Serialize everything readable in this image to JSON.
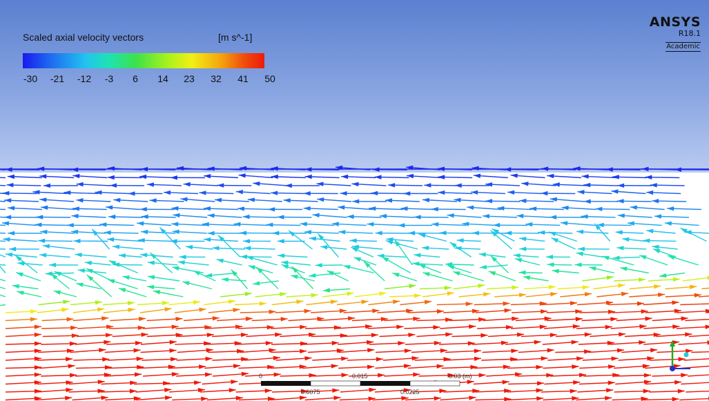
{
  "legend": {
    "title": "Scaled axial velocity vectors",
    "unit": "[m s^-1]",
    "ticks": [
      "-30",
      "-21",
      "-12",
      "-3",
      "6",
      "14",
      "23",
      "32",
      "41",
      "50"
    ],
    "min": -30,
    "max": 50
  },
  "logo": {
    "name": "ANSYS",
    "version": "R18.1",
    "edition": "Academic"
  },
  "scale_bar": {
    "top_labels": [
      "0",
      "0.015",
      "0.03 (m)"
    ],
    "bottom_labels": [
      "0.0075",
      "0.0225"
    ]
  },
  "colors": {
    "background_top": "#5b80d0",
    "background_bottom": "#b9cbf0",
    "axis_x": "#2233cc",
    "axis_y": "#22aa22",
    "axis_z": "#22ccdd"
  }
}
